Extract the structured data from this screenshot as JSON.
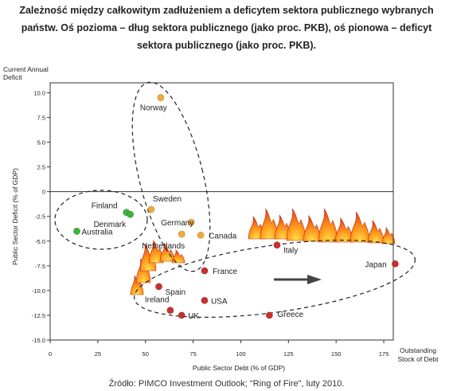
{
  "title": "Zależność między całkowitym zadłużeniem a deficytem sektora publicznego wybranych\npaństw. Oś pozioma – dług sektora publicznego (jako proc. PKB), oś pionowa – deficyt\nsektora publicznego (jako proc. PKB).",
  "source": "Źródło: PIMCO Investment Outlook; \"Ring of Fire\", luty 2010.",
  "chart_data": {
    "type": "scatter",
    "xlabel": "Public Sector Debt (% of GDP)",
    "ylabel": "Public Sector Deficit (% of GDP)",
    "x_axis_end_label": "Outstanding Stock of Debt",
    "y_axis_top_label": "Current Annual Deficit",
    "xlim": [
      0,
      180
    ],
    "ylim": [
      -15,
      11
    ],
    "x_ticks": [
      "0",
      "25",
      "50",
      "75",
      "100",
      "125",
      "150",
      "175"
    ],
    "y_ticks": [
      "10.0",
      "7.5",
      "5.0",
      "2.5",
      "0",
      "-2.5",
      "-5.0",
      "-7.5",
      "-10.0",
      "-12.5",
      "-15.0"
    ],
    "grid": false,
    "colors": {
      "green": "#3cb43c",
      "orange": "#f2a93b",
      "red": "#c8302c"
    },
    "points": [
      {
        "label": "Norway",
        "x": 58,
        "y": 9.5,
        "color": "orange"
      },
      {
        "label": "Sweden",
        "x": 53,
        "y": -1.8,
        "color": "orange"
      },
      {
        "label": "Germany",
        "x": 74,
        "y": -3.1,
        "color": "orange"
      },
      {
        "label": "Netherlands",
        "x": 69,
        "y": -4.3,
        "color": "orange"
      },
      {
        "label": "Canada",
        "x": 79,
        "y": -4.4,
        "color": "orange"
      },
      {
        "label": "Finland",
        "x": 40,
        "y": -2.1,
        "color": "green"
      },
      {
        "label": "Denmark",
        "x": 42,
        "y": -2.3,
        "color": "green"
      },
      {
        "label": "Australia",
        "x": 14,
        "y": -4.0,
        "color": "green"
      },
      {
        "label": "Italy",
        "x": 119,
        "y": -5.4,
        "color": "red"
      },
      {
        "label": "Japan",
        "x": 181,
        "y": -7.3,
        "color": "red"
      },
      {
        "label": "France",
        "x": 81,
        "y": -8.0,
        "color": "red"
      },
      {
        "label": "Spain",
        "x": 57,
        "y": -9.6,
        "color": "red"
      },
      {
        "label": "USA",
        "x": 81,
        "y": -11.0,
        "color": "red"
      },
      {
        "label": "Ireland",
        "x": 63,
        "y": -12.0,
        "color": "red"
      },
      {
        "label": "UK",
        "x": 69,
        "y": -12.5,
        "color": "red"
      },
      {
        "label": "Greece",
        "x": 115,
        "y": -12.5,
        "color": "red"
      }
    ]
  }
}
